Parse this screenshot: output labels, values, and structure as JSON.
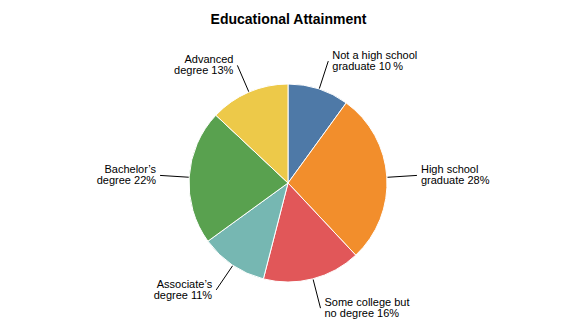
{
  "chart_data": {
    "type": "pie",
    "title": "Educational Attainment",
    "categories": [
      "Not a high school\ngraduate 10 %",
      "High school\ngraduate 28%",
      "Some college but\nno degree 16%",
      "Associate’s\ndegree 11%",
      "Bachelor’s\ndegree 22%",
      "Advanced\ndegree 13%"
    ],
    "values": [
      10,
      28,
      16,
      11,
      22,
      13
    ]
  }
}
